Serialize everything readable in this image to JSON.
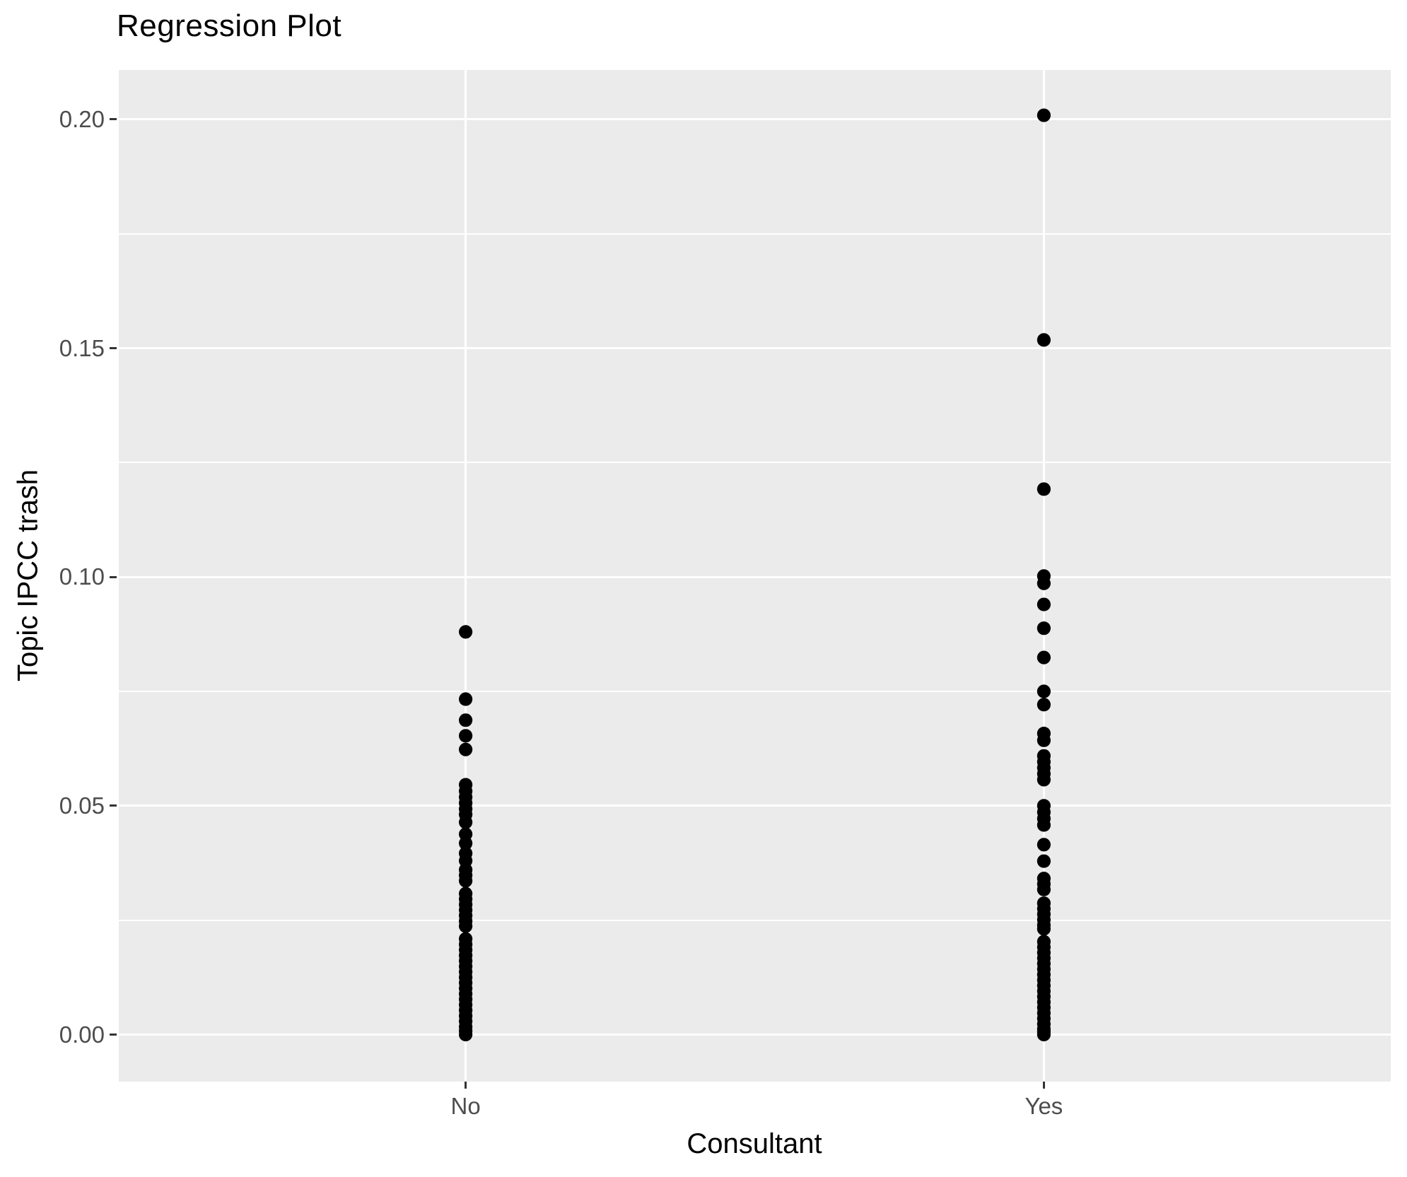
{
  "title": "Regression Plot",
  "x_axis": {
    "label": "Consultant",
    "tick_labels": [
      "No",
      "Yes"
    ]
  },
  "y_axis": {
    "label": "Topic IPCC trash",
    "tick_labels": [
      "0.00",
      "0.05",
      "0.10",
      "0.15",
      "0.20"
    ],
    "tick_values": [
      0.0,
      0.05,
      0.1,
      0.15,
      0.2
    ],
    "minor_tick_values": [
      0.025,
      0.075,
      0.125,
      0.175
    ]
  },
  "colors": {
    "panel_background": "#EBEBEB",
    "gridline": "#FFFFFF",
    "tick_text": "#4D4D4D",
    "axis_title_text": "#000000",
    "title_text": "#000000",
    "point": "#000000",
    "tick_mark": "#333333",
    "page_background": "#FFFFFF"
  },
  "chart_data": {
    "type": "scatter",
    "title": "Regression Plot",
    "xlabel": "Consultant",
    "ylabel": "Topic IPCC trash",
    "categories": [
      "No",
      "Yes"
    ],
    "ylim": [
      -0.0103,
      0.2108
    ],
    "y_major_gridlines": [
      0.0,
      0.05,
      0.1,
      0.15,
      0.2
    ],
    "y_minor_gridlines": [
      0.025,
      0.075,
      0.125,
      0.175
    ],
    "grid": "white major and minor gridlines on grey panel, no legend",
    "legend_position": "none",
    "series": [
      {
        "name": "No",
        "values": [
          0.088,
          0.0733,
          0.0687,
          0.0653,
          0.0623,
          0.0546,
          0.0532,
          0.0519,
          0.0506,
          0.0493,
          0.0481,
          0.0464,
          0.0438,
          0.0418,
          0.0396,
          0.038,
          0.036,
          0.0348,
          0.0336,
          0.0308,
          0.0296,
          0.0284,
          0.0272,
          0.026,
          0.0248,
          0.0237,
          0.0209,
          0.0197,
          0.0185,
          0.0173,
          0.0161,
          0.0149,
          0.0137,
          0.0125,
          0.0113,
          0.0101,
          0.0089,
          0.0077,
          0.0065,
          0.0053,
          0.0041,
          0.0029,
          0.0017,
          0.0008,
          0.0
        ]
      },
      {
        "name": "Yes",
        "values": [
          0.2009,
          0.1518,
          0.1192,
          0.1002,
          0.0986,
          0.094,
          0.0888,
          0.0824,
          0.075,
          0.0721,
          0.0658,
          0.0643,
          0.0609,
          0.0596,
          0.0583,
          0.057,
          0.0557,
          0.05,
          0.0486,
          0.0472,
          0.0458,
          0.0415,
          0.0379,
          0.0341,
          0.0329,
          0.0317,
          0.0287,
          0.0275,
          0.0263,
          0.0251,
          0.0239,
          0.0231,
          0.0203,
          0.0191,
          0.0179,
          0.0167,
          0.0155,
          0.0143,
          0.0131,
          0.0119,
          0.0107,
          0.0095,
          0.0083,
          0.0071,
          0.0059,
          0.0047,
          0.0035,
          0.0023,
          0.0012,
          0.0006,
          0.0
        ]
      }
    ]
  }
}
